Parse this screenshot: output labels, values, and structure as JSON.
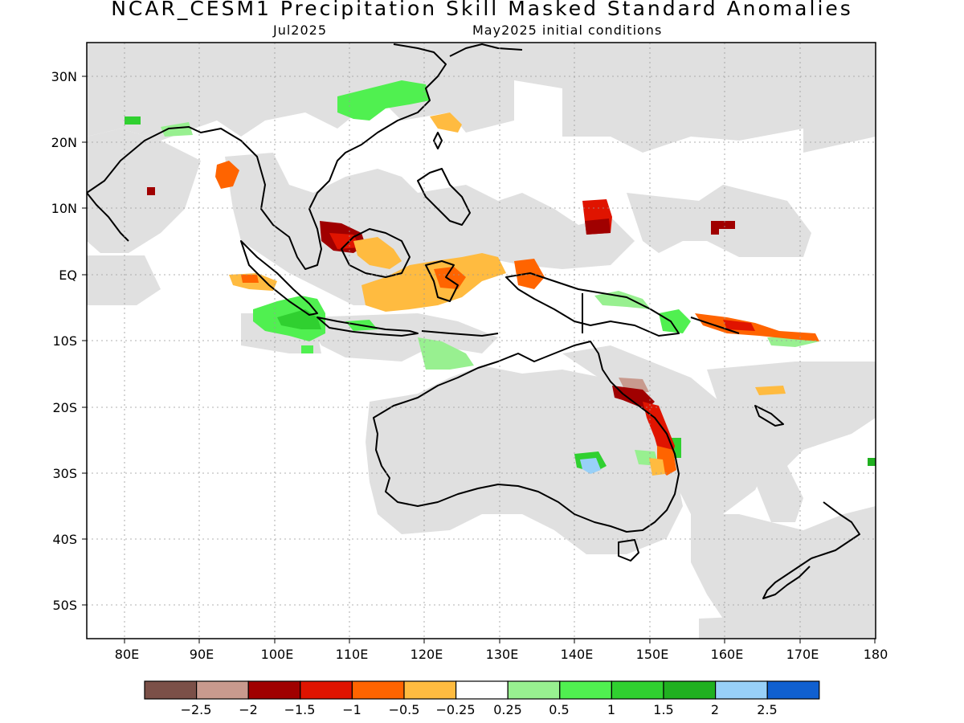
{
  "figure": {
    "title": "NCAR_CESM1 Precipitation Skill Masked Standard Anomalies",
    "valid_month": "Jul2025",
    "initial_conditions": "May2025 initial conditions"
  },
  "map": {
    "lon_range": [
      75,
      180
    ],
    "lat_range": [
      -55,
      35
    ],
    "x_ticks": [
      "80E",
      "90E",
      "100E",
      "110E",
      "120E",
      "130E",
      "140E",
      "150E",
      "160E",
      "170E",
      "180"
    ],
    "y_ticks": [
      "30N",
      "20N",
      "10N",
      "EQ",
      "10S",
      "20S",
      "30S",
      "40S",
      "50S"
    ],
    "mask_color": "#e0e0e0"
  },
  "colorbar": {
    "colors": [
      "#7b5048",
      "#c89a8e",
      "#a00000",
      "#e01400",
      "#ff6400",
      "#ffbb40",
      "#ffffff",
      "#98f090",
      "#50f050",
      "#30d030",
      "#20b020",
      "#98d0f8",
      "#1060d0"
    ],
    "labels": [
      "−2.5",
      "−2",
      "−1.5",
      "−1",
      "−0.5",
      "−0.25",
      "0.25",
      "0.5",
      "1",
      "1.5",
      "2",
      "2.5"
    ]
  }
}
